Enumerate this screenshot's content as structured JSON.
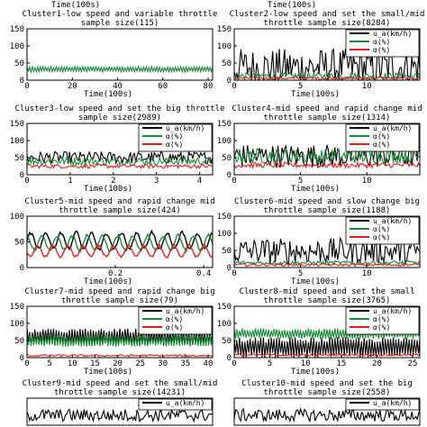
{
  "figure": {
    "top_xlabels": [
      "Time(100s)",
      "Time(100s)"
    ]
  },
  "chart_data": [
    {
      "type": "line",
      "title": [
        "Cluster1-low speed and variable throttle",
        "sample size(115)"
      ],
      "xlabel": "Time(100s)",
      "ylim": [
        0,
        150
      ],
      "yticks": [
        0,
        50,
        100,
        150
      ],
      "xlim": [
        0,
        82
      ],
      "xticks": [
        0,
        20,
        40,
        60,
        80
      ],
      "legend": [],
      "series": [
        {
          "color": "#1a8a3a",
          "mean": 32,
          "amp": 8,
          "style": "band"
        }
      ]
    },
    {
      "type": "line",
      "title": [
        "Cluster2-low speed and set the small/mid",
        "throttle sample size(8284)"
      ],
      "xlabel": "Time(100s)",
      "ylim": [
        0,
        150
      ],
      "yticks": [
        0,
        50,
        100,
        150
      ],
      "xlim": [
        0,
        14
      ],
      "xticks": [
        0,
        5,
        10
      ],
      "legend": [
        "u_a(km/h)",
        "α(%)",
        "α(%)"
      ],
      "series": [
        {
          "name": "u_a(km/h)",
          "color": "#000000",
          "mean": 38,
          "amp": 55,
          "style": "noise"
        },
        {
          "name": "α(%)",
          "color": "#1a8a3a",
          "mean": 12,
          "amp": 10,
          "style": "noise"
        },
        {
          "name": "α(%)",
          "color": "#e02020",
          "mean": 6,
          "amp": 4,
          "style": "noise"
        }
      ]
    },
    {
      "type": "line",
      "title": [
        "Cluster3-low speed and set the big throttle",
        "sample size(2989)"
      ],
      "xlabel": "Time(100s)",
      "ylim": [
        0,
        150
      ],
      "yticks": [
        0,
        50,
        100,
        150
      ],
      "xlim": [
        0,
        4.3
      ],
      "xticks": [
        0,
        1,
        2,
        3,
        4
      ],
      "legend": [
        "u_a(km/h)",
        "α(%)",
        "α(%)"
      ],
      "series": [
        {
          "name": "u_a(km/h)",
          "color": "#000000",
          "mean": 50,
          "amp": 18,
          "style": "noise"
        },
        {
          "name": "α(%)",
          "color": "#1a8a3a",
          "mean": 40,
          "amp": 12,
          "style": "noise"
        },
        {
          "name": "α(%)",
          "color": "#e02020",
          "mean": 25,
          "amp": 6,
          "style": "noise"
        }
      ]
    },
    {
      "type": "line",
      "title": [
        "Cluster4-mid speed and rapid change mid",
        "throttle sample size(1314)"
      ],
      "xlabel": "Time(100s)",
      "ylim": [
        0,
        150
      ],
      "yticks": [
        0,
        50,
        100,
        150
      ],
      "xlim": [
        0,
        14
      ],
      "xticks": [
        0,
        5,
        10
      ],
      "legend": [
        "u_a(km/h)",
        "α(%)",
        "α(%)"
      ],
      "series": [
        {
          "name": "u_a(km/h)",
          "color": "#000000",
          "mean": 55,
          "amp": 35,
          "style": "noise"
        },
        {
          "name": "α(%)",
          "color": "#1a8a3a",
          "mean": 55,
          "amp": 22,
          "style": "noise"
        },
        {
          "name": "α(%)",
          "color": "#e02020",
          "mean": 28,
          "amp": 8,
          "style": "noise"
        }
      ]
    },
    {
      "type": "line",
      "title": [
        "Cluster5-mid speed and rapid change mid",
        "throttle sample size(424)"
      ],
      "xlabel": "Time(100s)",
      "ylim": [
        0,
        100
      ],
      "yticks": [
        0,
        50,
        100
      ],
      "xlim": [
        0,
        0.42
      ],
      "xticks": [
        0.2,
        0.4
      ],
      "legend": [],
      "series": [
        {
          "color": "#000000",
          "mean": 52,
          "amp": 20,
          "style": "wave"
        },
        {
          "color": "#1a8a3a",
          "mean": 48,
          "amp": 18,
          "style": "wave"
        },
        {
          "color": "#e02020",
          "mean": 32,
          "amp": 14,
          "style": "wave"
        }
      ]
    },
    {
      "type": "line",
      "title": [
        "Cluster6-mid speed and slow change big",
        "throttle sample size(1188)"
      ],
      "xlabel": "Time(100s)",
      "ylim": [
        0,
        150
      ],
      "yticks": [
        0,
        50,
        100,
        150
      ],
      "xlim": [
        0,
        14
      ],
      "xticks": [
        0,
        5,
        10
      ],
      "legend": [
        "u_a(km/h)",
        "α(%)",
        "α(%)"
      ],
      "series": [
        {
          "name": "u_a(km/h)",
          "color": "#000000",
          "mean": 48,
          "amp": 38,
          "style": "noise"
        },
        {
          "name": "α(%)",
          "color": "#1a8a3a",
          "mean": 14,
          "amp": 6,
          "style": "noise"
        },
        {
          "name": "α(%)",
          "color": "#e02020",
          "mean": 8,
          "amp": 4,
          "style": "noise"
        }
      ]
    },
    {
      "type": "line",
      "title": [
        "Cluster7-mid speed and rapid change big",
        "throttle sample size(79)"
      ],
      "xlabel": "Time(100s)",
      "ylim": [
        0,
        150
      ],
      "yticks": [
        0,
        50,
        100,
        150
      ],
      "xlim": [
        0,
        41
      ],
      "xticks": [
        0,
        5,
        10,
        15,
        20,
        25,
        30,
        35,
        40
      ],
      "legend": [
        "u_a(km/h)",
        "α(%)",
        "α(%)"
      ],
      "series": [
        {
          "name": "u_a(km/h)",
          "color": "#000000",
          "mean": 60,
          "amp": 25,
          "style": "band"
        },
        {
          "name": "α(%)",
          "color": "#1a8a3a",
          "mean": 50,
          "amp": 18,
          "style": "band"
        },
        {
          "name": "α(%)",
          "color": "#e02020",
          "mean": 6,
          "amp": 3,
          "style": "noise"
        }
      ]
    },
    {
      "type": "line",
      "title": [
        "Cluster8-mid speed and set the small",
        "throttle sample size(3765)"
      ],
      "xlabel": "Time(100s)",
      "ylim": [
        0,
        150
      ],
      "yticks": [
        0,
        50,
        100,
        150
      ],
      "xlim": [
        0,
        26
      ],
      "xticks": [
        0,
        5,
        10,
        15,
        20,
        25
      ],
      "legend": [
        "u_a(km/h)",
        "α(%)",
        "α(%)"
      ],
      "series": [
        {
          "name": "u_a(km/h)",
          "color": "#000000",
          "mean": 30,
          "amp": 30,
          "style": "band"
        },
        {
          "name": "α(%)",
          "color": "#1a8a3a",
          "mean": 70,
          "amp": 16,
          "style": "band"
        },
        {
          "name": "α(%)",
          "color": "#e02020",
          "mean": 8,
          "amp": 3,
          "style": "noise"
        }
      ]
    },
    {
      "type": "line",
      "title": [
        "Cluster9-mid speed and set the small/mid",
        "throttle sample size(14231)"
      ],
      "xlabel": "",
      "ylim": [
        0,
        150
      ],
      "yticks": [],
      "xlim": [
        0,
        10
      ],
      "xticks": [],
      "legend": [
        "u_a(km/h)"
      ],
      "series": [
        {
          "name": "u_a(km/h)",
          "color": "#000000",
          "mean": 55,
          "amp": 35,
          "style": "noise"
        }
      ]
    },
    {
      "type": "line",
      "title": [
        "Cluster10-mid speed and set the big",
        "throttle sample size(2558)"
      ],
      "xlabel": "",
      "ylim": [
        0,
        150
      ],
      "yticks": [],
      "xlim": [
        0,
        10
      ],
      "xticks": [],
      "legend": [
        "u_a(km/h)"
      ],
      "series": [
        {
          "name": "u_a(km/h)",
          "color": "#000000",
          "mean": 55,
          "amp": 35,
          "style": "noise"
        }
      ]
    }
  ]
}
